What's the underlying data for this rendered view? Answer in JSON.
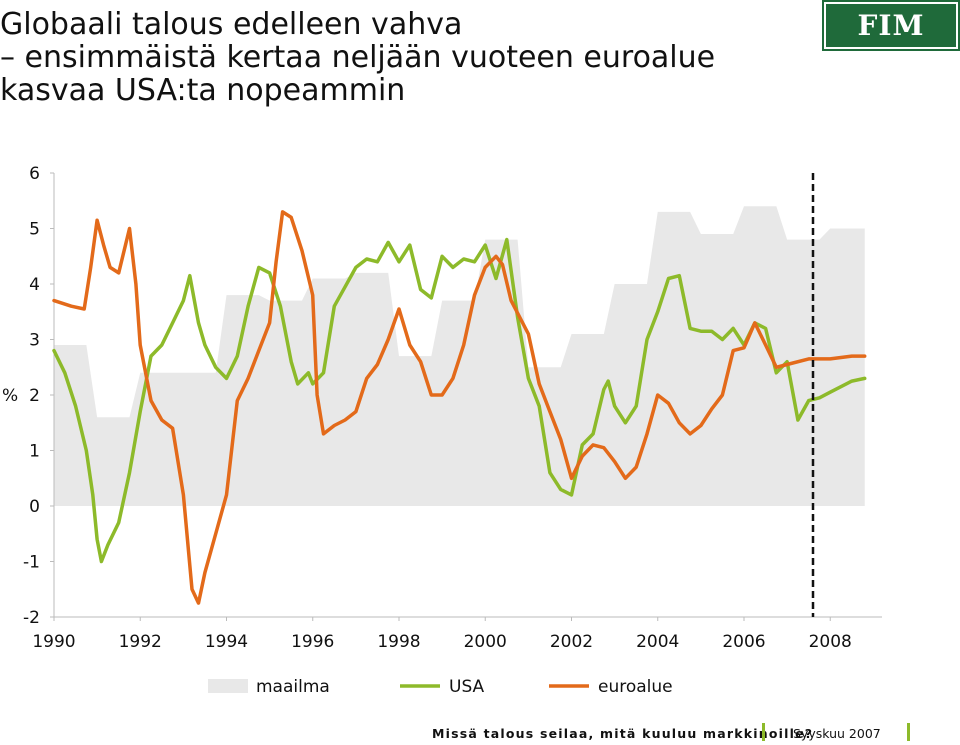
{
  "title": {
    "line1": "Globaali talous edelleen vahva",
    "line2": "– ensimmäistä kertaa neljään vuoteen euroalue",
    "line3": "kasvaa USA:ta nopeammin"
  },
  "logo": {
    "text": "FIM"
  },
  "footer": {
    "left": "Missä talous seilaa, mitä kuuluu markkinoille?",
    "right": "Syyskuu 2007"
  },
  "chart_data": {
    "type": "line",
    "ylabel": "%",
    "ylim": [
      -2,
      6
    ],
    "xlim": [
      1990,
      2009.2
    ],
    "yticks": [
      "-2",
      "-1",
      "0",
      "1",
      "2",
      "3",
      "4",
      "5",
      "6"
    ],
    "xticks": [
      "1990",
      "1992",
      "1994",
      "1996",
      "1998",
      "2000",
      "2002",
      "2004",
      "2006",
      "2008"
    ],
    "forecast_divider_x": 2007.6,
    "grid": false,
    "legend_position": "bottom",
    "colors": {
      "maailma": "#e8e8e8",
      "USA": "#8dba2a",
      "euroalue": "#e36a1a"
    },
    "series": [
      {
        "name": "maailma",
        "style": "area",
        "points": [
          [
            1990,
            2.9
          ],
          [
            1990.75,
            2.9
          ],
          [
            1991,
            1.6
          ],
          [
            1991.75,
            1.6
          ],
          [
            1992,
            2.4
          ],
          [
            1993.75,
            2.4
          ],
          [
            1994,
            3.8
          ],
          [
            1994.75,
            3.8
          ],
          [
            1995,
            3.7
          ],
          [
            1995.75,
            3.7
          ],
          [
            1996,
            4.1
          ],
          [
            1996.75,
            4.1
          ],
          [
            1997,
            4.2
          ],
          [
            1997.75,
            4.2
          ],
          [
            1998,
            2.7
          ],
          [
            1998.75,
            2.7
          ],
          [
            1999,
            3.7
          ],
          [
            1999.75,
            3.7
          ],
          [
            2000,
            4.8
          ],
          [
            2000.75,
            4.8
          ],
          [
            2001,
            2.5
          ],
          [
            2001.75,
            2.5
          ],
          [
            2002,
            3.1
          ],
          [
            2002.75,
            3.1
          ],
          [
            2003,
            4.0
          ],
          [
            2003.75,
            4.0
          ],
          [
            2004,
            5.3
          ],
          [
            2004.75,
            5.3
          ],
          [
            2005,
            4.9
          ],
          [
            2005.75,
            4.9
          ],
          [
            2006,
            5.4
          ],
          [
            2006.75,
            5.4
          ],
          [
            2007,
            4.8
          ],
          [
            2007.75,
            4.8
          ],
          [
            2008,
            5.0
          ],
          [
            2008.8,
            5.0
          ]
        ]
      },
      {
        "name": "USA",
        "style": "line",
        "points": [
          [
            1990,
            2.8
          ],
          [
            1990.25,
            2.4
          ],
          [
            1990.5,
            1.8
          ],
          [
            1990.75,
            1.0
          ],
          [
            1990.9,
            0.2
          ],
          [
            1991.0,
            -0.6
          ],
          [
            1991.1,
            -1.0
          ],
          [
            1991.25,
            -0.7
          ],
          [
            1991.5,
            -0.3
          ],
          [
            1991.75,
            0.6
          ],
          [
            1992,
            1.7
          ],
          [
            1992.25,
            2.7
          ],
          [
            1992.5,
            2.9
          ],
          [
            1992.75,
            3.3
          ],
          [
            1993,
            3.7
          ],
          [
            1993.15,
            4.15
          ],
          [
            1993.35,
            3.3
          ],
          [
            1993.5,
            2.9
          ],
          [
            1993.75,
            2.5
          ],
          [
            1994,
            2.3
          ],
          [
            1994.25,
            2.7
          ],
          [
            1994.5,
            3.6
          ],
          [
            1994.75,
            4.3
          ],
          [
            1995,
            4.2
          ],
          [
            1995.25,
            3.6
          ],
          [
            1995.5,
            2.6
          ],
          [
            1995.65,
            2.2
          ],
          [
            1995.9,
            2.4
          ],
          [
            1996,
            2.2
          ],
          [
            1996.25,
            2.4
          ],
          [
            1996.5,
            3.6
          ],
          [
            1996.75,
            3.95
          ],
          [
            1997,
            4.3
          ],
          [
            1997.25,
            4.45
          ],
          [
            1997.5,
            4.4
          ],
          [
            1997.75,
            4.75
          ],
          [
            1998,
            4.4
          ],
          [
            1998.25,
            4.7
          ],
          [
            1998.5,
            3.9
          ],
          [
            1998.75,
            3.75
          ],
          [
            1999,
            4.5
          ],
          [
            1999.25,
            4.3
          ],
          [
            1999.5,
            4.45
          ],
          [
            1999.75,
            4.4
          ],
          [
            2000,
            4.7
          ],
          [
            2000.25,
            4.1
          ],
          [
            2000.5,
            4.8
          ],
          [
            2000.75,
            3.4
          ],
          [
            2001,
            2.3
          ],
          [
            2001.25,
            1.8
          ],
          [
            2001.5,
            0.6
          ],
          [
            2001.75,
            0.3
          ],
          [
            2002,
            0.2
          ],
          [
            2002.25,
            1.1
          ],
          [
            2002.5,
            1.3
          ],
          [
            2002.75,
            2.1
          ],
          [
            2002.85,
            2.25
          ],
          [
            2003,
            1.8
          ],
          [
            2003.25,
            1.5
          ],
          [
            2003.5,
            1.8
          ],
          [
            2003.75,
            3.0
          ],
          [
            2004,
            3.5
          ],
          [
            2004.25,
            4.1
          ],
          [
            2004.5,
            4.15
          ],
          [
            2004.75,
            3.2
          ],
          [
            2005,
            3.15
          ],
          [
            2005.25,
            3.15
          ],
          [
            2005.5,
            3.0
          ],
          [
            2005.75,
            3.2
          ],
          [
            2006,
            2.9
          ],
          [
            2006.25,
            3.3
          ],
          [
            2006.5,
            3.2
          ],
          [
            2006.75,
            2.4
          ],
          [
            2007,
            2.6
          ],
          [
            2007.25,
            1.55
          ],
          [
            2007.5,
            1.9
          ],
          [
            2007.75,
            1.95
          ],
          [
            2008,
            2.05
          ],
          [
            2008.5,
            2.25
          ],
          [
            2008.8,
            2.3
          ]
        ]
      },
      {
        "name": "euroalue",
        "style": "line",
        "points": [
          [
            1990,
            3.7
          ],
          [
            1990.4,
            3.6
          ],
          [
            1990.7,
            3.55
          ],
          [
            1990.85,
            4.3
          ],
          [
            1991,
            5.15
          ],
          [
            1991.15,
            4.7
          ],
          [
            1991.3,
            4.3
          ],
          [
            1991.5,
            4.2
          ],
          [
            1991.75,
            5.0
          ],
          [
            1991.9,
            4.0
          ],
          [
            1992,
            2.9
          ],
          [
            1992.25,
            1.9
          ],
          [
            1992.5,
            1.55
          ],
          [
            1992.75,
            1.4
          ],
          [
            1993,
            0.2
          ],
          [
            1993.2,
            -1.5
          ],
          [
            1993.35,
            -1.75
          ],
          [
            1993.5,
            -1.2
          ],
          [
            1993.75,
            -0.5
          ],
          [
            1994,
            0.2
          ],
          [
            1994.25,
            1.9
          ],
          [
            1994.5,
            2.3
          ],
          [
            1994.75,
            2.8
          ],
          [
            1995,
            3.3
          ],
          [
            1995.15,
            4.4
          ],
          [
            1995.3,
            5.3
          ],
          [
            1995.5,
            5.2
          ],
          [
            1995.75,
            4.6
          ],
          [
            1996,
            3.8
          ],
          [
            1996.1,
            2.0
          ],
          [
            1996.25,
            1.3
          ],
          [
            1996.5,
            1.45
          ],
          [
            1996.75,
            1.55
          ],
          [
            1997,
            1.7
          ],
          [
            1997.25,
            2.3
          ],
          [
            1997.5,
            2.55
          ],
          [
            1997.75,
            3.0
          ],
          [
            1998,
            3.55
          ],
          [
            1998.25,
            2.9
          ],
          [
            1998.5,
            2.6
          ],
          [
            1998.75,
            2.0
          ],
          [
            1999,
            2.0
          ],
          [
            1999.25,
            2.3
          ],
          [
            1999.5,
            2.9
          ],
          [
            1999.75,
            3.8
          ],
          [
            2000,
            4.3
          ],
          [
            2000.25,
            4.5
          ],
          [
            2000.4,
            4.35
          ],
          [
            2000.6,
            3.7
          ],
          [
            2001,
            3.1
          ],
          [
            2001.25,
            2.2
          ],
          [
            2001.5,
            1.7
          ],
          [
            2001.75,
            1.2
          ],
          [
            2002,
            0.5
          ],
          [
            2002.25,
            0.9
          ],
          [
            2002.5,
            1.1
          ],
          [
            2002.75,
            1.05
          ],
          [
            2003,
            0.8
          ],
          [
            2003.25,
            0.5
          ],
          [
            2003.5,
            0.7
          ],
          [
            2003.75,
            1.3
          ],
          [
            2004,
            2.0
          ],
          [
            2004.25,
            1.85
          ],
          [
            2004.5,
            1.5
          ],
          [
            2004.75,
            1.3
          ],
          [
            2005,
            1.45
          ],
          [
            2005.25,
            1.75
          ],
          [
            2005.5,
            2.0
          ],
          [
            2005.75,
            2.8
          ],
          [
            2006,
            2.85
          ],
          [
            2006.25,
            3.3
          ],
          [
            2006.5,
            2.9
          ],
          [
            2006.75,
            2.5
          ],
          [
            2007,
            2.55
          ],
          [
            2007.5,
            2.65
          ],
          [
            2008,
            2.65
          ],
          [
            2008.5,
            2.7
          ],
          [
            2008.8,
            2.7
          ]
        ]
      }
    ]
  }
}
